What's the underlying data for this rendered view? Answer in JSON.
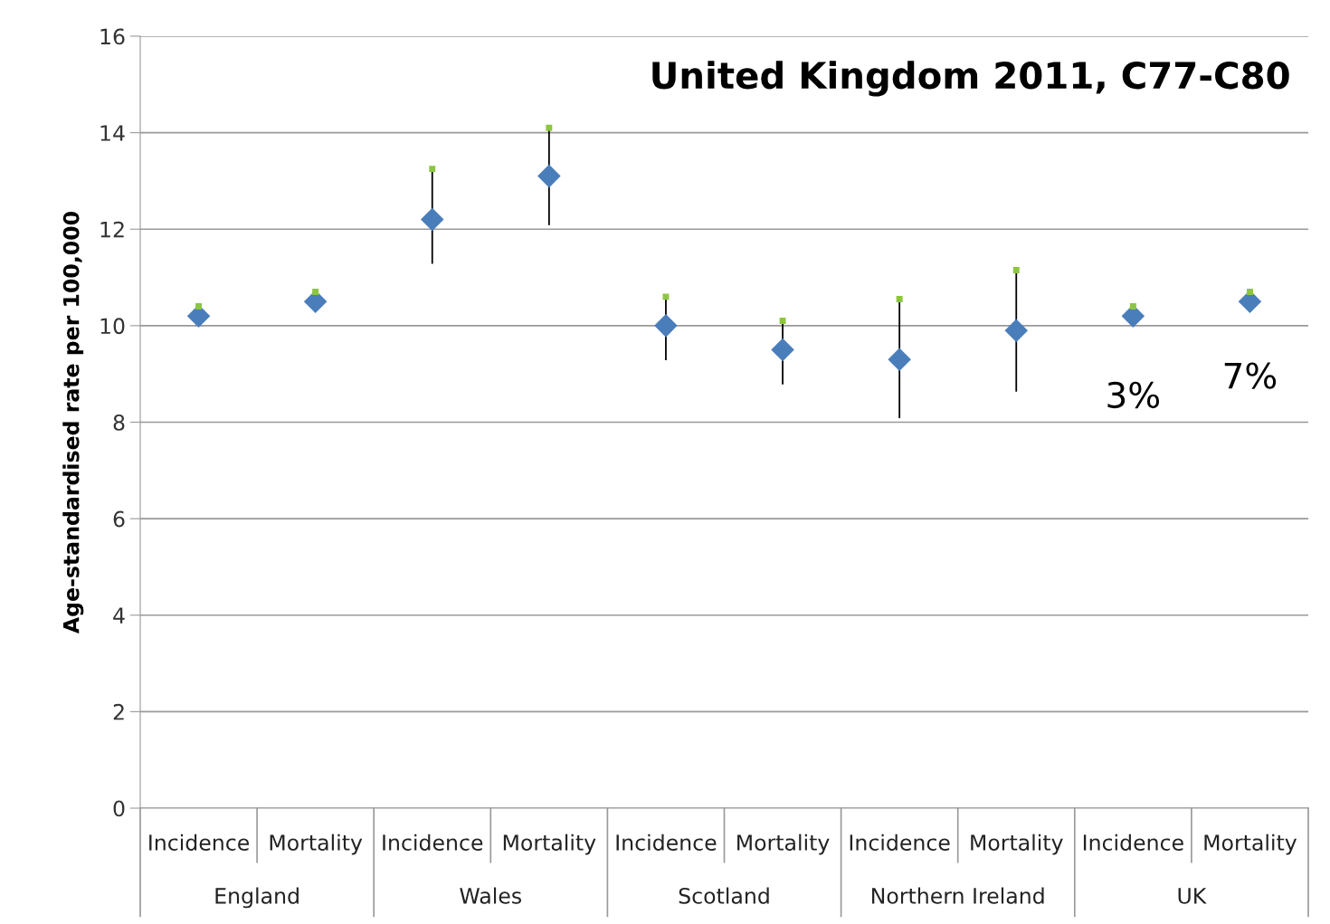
{
  "chart_data": {
    "type": "scatter",
    "title": "United Kingdom 2011, C77-C80",
    "ylabel": "Age-standardised rate per 100,000",
    "categories": [
      "Incidence",
      "Mortality",
      "Incidence",
      "Mortality",
      "Incidence",
      "Mortality",
      "Incidence",
      "Mortality",
      "Incidence",
      "Mortality"
    ],
    "series": [
      {
        "color": "#4a7ebb",
        "marker": "diamond",
        "values": [
          10.2,
          10.5,
          12.2,
          13.1,
          10.0,
          9.5,
          9.3,
          9.9,
          10.2,
          10.5
        ],
        "errors": [
          null,
          null,
          [
            11.3,
            13.25
          ],
          [
            12.1,
            14.1
          ],
          [
            9.3,
            10.6
          ],
          [
            8.8,
            10.1
          ],
          [
            8.1,
            10.55
          ],
          [
            8.65,
            11.15
          ],
          null,
          null
        ]
      },
      {
        "color": "#8dc63f",
        "marker": "square",
        "values": [
          10.4,
          10.7,
          13.25,
          14.1,
          10.6,
          10.1,
          10.55,
          11.15,
          10.4,
          10.7
        ]
      }
    ],
    "annotations": [
      "England",
      "Wales",
      "Scotland",
      "Northern Ireland",
      "UK",
      "3%",
      "7%"
    ],
    "ylim": [
      0,
      16
    ],
    "yticks": [
      0,
      2,
      4,
      6,
      8,
      10,
      12,
      14,
      16
    ],
    "grid": "y",
    "legend": false
  }
}
